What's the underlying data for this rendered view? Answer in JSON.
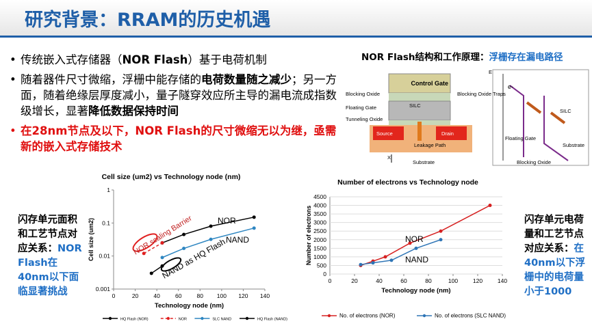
{
  "title": "研究背景：RRAM的历史机遇",
  "bullets": [
    {
      "segments": [
        {
          "text": "传统嵌入式存储器（",
          "bold": false
        },
        {
          "text": "NOR Flash",
          "bold": true
        },
        {
          "text": "）基于电荷机制",
          "bold": false
        }
      ]
    },
    {
      "segments": [
        {
          "text": "随着器件尺寸微缩，浮栅中能存储的",
          "bold": false
        },
        {
          "text": "电荷数量随之减少",
          "bold": true
        },
        {
          "text": "；另一方面，随着绝缘层厚度减小，量子隧穿效应所主导的漏电流成指数级增长，显著",
          "bold": false
        },
        {
          "text": "降低数据保持时间",
          "bold": true
        }
      ]
    },
    {
      "color": "#e01010",
      "segments": [
        {
          "text": "在28nm节点及以下，NOR Flash的尺寸微缩无以为继，亟需新的嵌入式存储技术",
          "bold": true
        }
      ]
    }
  ],
  "diagram": {
    "title": "NOR Flash结构和工作原理：",
    "title_highlight": "浮栅存在漏电路径",
    "labels": [
      "Control  Gate",
      "Blocking Oxide",
      "Floating Gate",
      "Tunneling Oxide",
      "SILC",
      "Source",
      "Drain",
      "Leakage Path",
      "Substrate",
      "X",
      "Blocking Oxide Traps",
      "E",
      "e-",
      "Floating Gate",
      "SILC",
      "Substrate",
      "Blocking Oxide"
    ]
  },
  "left_note": {
    "text": "闪存单元面积和工艺节点对应关系：",
    "highlight": "NOR Flash在40nm以下面临显著挑战"
  },
  "right_note": {
    "text": "闪存单元电荷量和工艺节点对应关系：",
    "highlight": "在40nm以下浮栅中的电荷量小于1000"
  },
  "charts": [
    {
      "type": "line",
      "title": "Cell size (um2) vs Technology node (nm)",
      "xlabel": "Technology node (nm)",
      "ylabel": "Cell size (um2)",
      "log_y": true,
      "grid": false,
      "xlim": [
        0,
        140
      ],
      "ylim": [
        0.001,
        1
      ],
      "xticks": [
        0,
        20,
        40,
        60,
        80,
        100,
        120,
        140
      ],
      "yticks": [
        0.001,
        0.01,
        0.1,
        1
      ],
      "series": [
        {
          "name": "HQ Flash (NOR)",
          "color": "#000000",
          "dashed": false,
          "x": [
            45,
            65,
            90,
            130
          ],
          "values": [
            0.025,
            0.045,
            0.08,
            0.15
          ]
        },
        {
          "name": "NOR",
          "color": "#e02020",
          "dashed": true,
          "x": [
            28,
            45
          ],
          "values": [
            0.012,
            0.025
          ]
        },
        {
          "name": "SLC NAND",
          "color": "#2e86c1",
          "dashed": false,
          "x": [
            45,
            65,
            90,
            130
          ],
          "values": [
            0.009,
            0.017,
            0.032,
            0.07
          ]
        },
        {
          "name": "HQ Flash (NAND)",
          "color": "#000000",
          "dashed": false,
          "x": [
            35,
            45
          ],
          "values": [
            0.003,
            0.005
          ]
        }
      ],
      "annotations": [
        {
          "text": "NOR"
        },
        {
          "text": "NAND"
        },
        {
          "text": "NOR scaling Barrier"
        },
        {
          "text": "NAND as HQ Flash"
        }
      ]
    },
    {
      "type": "line",
      "title": "Number of electrons vs Technology node",
      "xlabel": "Technology node (nm)",
      "ylabel": "Number of electrons",
      "log_y": false,
      "grid": true,
      "xlim": [
        0,
        140
      ],
      "ylim": [
        0,
        4500
      ],
      "xticks": [
        0,
        20,
        40,
        60,
        80,
        100,
        120,
        140
      ],
      "yticks": [
        0,
        500,
        1000,
        1500,
        2000,
        2500,
        3000,
        3500,
        4000,
        4500
      ],
      "series": [
        {
          "name": "No. of electrons (NOR)",
          "color": "#d62020",
          "dashed": false,
          "x": [
            25,
            35,
            45,
            65,
            90,
            130
          ],
          "values": [
            500,
            750,
            1000,
            1800,
            2500,
            4000
          ]
        },
        {
          "name": "No. of electrons (SLC NAND)",
          "color": "#2e75b6",
          "dashed": false,
          "x": [
            25,
            35,
            50,
            70,
            90
          ],
          "values": [
            550,
            650,
            800,
            1500,
            2000
          ]
        }
      ],
      "annotations": [
        {
          "text": "NOR"
        },
        {
          "text": "NAND"
        }
      ]
    }
  ]
}
